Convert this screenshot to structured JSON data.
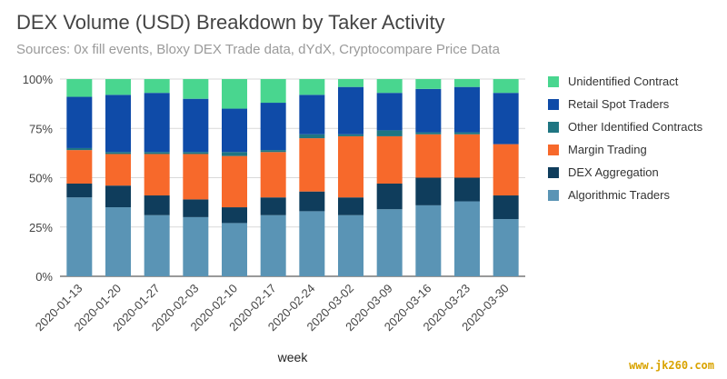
{
  "watermark": "www.jk260.com",
  "chart_data": {
    "type": "bar",
    "stacked": true,
    "percent": true,
    "title": "DEX Volume (USD) Breakdown by Taker Activity",
    "subtitle": "Sources: 0x fill events, Bloxy DEX Trade data, dYdX, Cryptocompare Price Data",
    "xlabel": "week",
    "ylabel": "",
    "ylim": [
      0,
      100
    ],
    "yticks": [
      "0%",
      "25%",
      "50%",
      "75%",
      "100%"
    ],
    "grid": true,
    "legend_position": "right",
    "categories": [
      "2020-01-13",
      "2020-01-20",
      "2020-01-27",
      "2020-02-03",
      "2020-02-10",
      "2020-02-17",
      "2020-02-24",
      "2020-03-02",
      "2020-03-09",
      "2020-03-16",
      "2020-03-23",
      "2020-03-30"
    ],
    "series": [
      {
        "name": "Algorithmic Traders",
        "color": "#5a94b5",
        "values": [
          40,
          35,
          31,
          30,
          27,
          31,
          33,
          31,
          34,
          36,
          38,
          29
        ]
      },
      {
        "name": "DEX Aggregation",
        "color": "#0f3d5c",
        "values": [
          7,
          11,
          10,
          9,
          8,
          9,
          10,
          9,
          13,
          14,
          12,
          12
        ]
      },
      {
        "name": "Margin Trading",
        "color": "#f7692b",
        "values": [
          17,
          16,
          21,
          23,
          26,
          23,
          27,
          31,
          24,
          22,
          22,
          26
        ]
      },
      {
        "name": "Other Identified Contracts",
        "color": "#1f7582",
        "values": [
          1,
          1,
          1,
          1,
          2,
          1,
          2,
          1,
          3,
          1,
          1,
          0
        ]
      },
      {
        "name": "Retail Spot Traders",
        "color": "#0f4ba8",
        "values": [
          26,
          29,
          30,
          27,
          22,
          24,
          20,
          24,
          19,
          22,
          23,
          26
        ]
      },
      {
        "name": "Unidentified Contract",
        "color": "#49d68f",
        "values": [
          9,
          8,
          7,
          10,
          15,
          12,
          8,
          4,
          7,
          5,
          4,
          7
        ]
      }
    ]
  }
}
